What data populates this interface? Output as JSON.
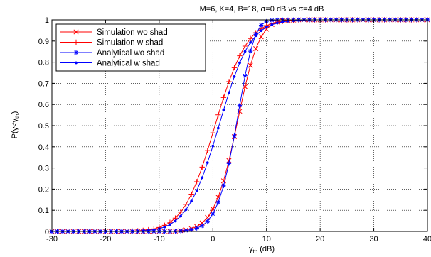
{
  "chart_data": {
    "type": "line",
    "title": "M=6, K=4, B=18, σ=0 dB vs σ=4 dB",
    "xlabel": {
      "base": "γ",
      "sub": "th",
      "suffix": " (dB)"
    },
    "ylabel": {
      "prefix": "P(γ<γ",
      "sub": "th",
      "suffix": ")"
    },
    "xlim": [
      -30,
      40
    ],
    "ylim": [
      0,
      1
    ],
    "xticks": [
      -30,
      -20,
      -10,
      0,
      10,
      20,
      30,
      40
    ],
    "yticks": [
      0,
      0.1,
      0.2,
      0.3,
      0.4,
      0.5,
      0.6,
      0.7,
      0.8,
      0.9,
      1
    ],
    "grid": true,
    "grid_style": "dotted",
    "legend_position": "top-left",
    "series": [
      {
        "name": "Simulation wo shad",
        "color": "#ff0000",
        "marker": "x",
        "x": [
          -30,
          -29,
          -28,
          -27,
          -26,
          -25,
          -24,
          -23,
          -22,
          -21,
          -20,
          -19,
          -18,
          -17,
          -16,
          -15,
          -14,
          -13,
          -12,
          -11,
          -10,
          -9,
          -8,
          -7,
          -6,
          -5,
          -4,
          -3,
          -2,
          -1,
          0,
          1,
          2,
          3,
          4,
          5,
          6,
          7,
          8,
          9,
          10,
          11,
          12,
          13,
          14,
          15,
          16,
          17,
          18,
          19,
          20,
          21,
          22,
          23,
          24,
          25,
          26,
          27,
          28,
          29,
          30,
          31,
          32,
          33,
          34,
          35,
          36,
          37,
          38,
          39,
          40
        ],
        "y": [
          0,
          0,
          0,
          0,
          0,
          0,
          0,
          0,
          0,
          0,
          0,
          0,
          0,
          0,
          0,
          0,
          0,
          0,
          0,
          0,
          0,
          0,
          0.001,
          0.002,
          0.004,
          0.007,
          0.013,
          0.023,
          0.04,
          0.066,
          0.106,
          0.162,
          0.239,
          0.335,
          0.448,
          0.568,
          0.684,
          0.785,
          0.864,
          0.92,
          0.956,
          0.978,
          0.99,
          0.996,
          0.998,
          0.999,
          1,
          1,
          1,
          1,
          1,
          1,
          1,
          1,
          1,
          1,
          1,
          1,
          1,
          1,
          1,
          1,
          1,
          1,
          1,
          1,
          1,
          1,
          1,
          1,
          1
        ]
      },
      {
        "name": "Simulation w shad",
        "color": "#ff0000",
        "marker": "+",
        "x": [
          -30,
          -29,
          -28,
          -27,
          -26,
          -25,
          -24,
          -23,
          -22,
          -21,
          -20,
          -19,
          -18,
          -17,
          -16,
          -15,
          -14,
          -13,
          -12,
          -11,
          -10,
          -9,
          -8,
          -7,
          -6,
          -5,
          -4,
          -3,
          -2,
          -1,
          0,
          1,
          2,
          3,
          4,
          5,
          6,
          7,
          8,
          9,
          10,
          11,
          12,
          13,
          14,
          15,
          16,
          17,
          18,
          19,
          20,
          21,
          22,
          23,
          24,
          25,
          26,
          27,
          28,
          29,
          30,
          31,
          32,
          33,
          34,
          35,
          36,
          37,
          38,
          39,
          40
        ],
        "y": [
          0,
          0,
          0,
          0,
          0,
          0,
          0,
          0,
          0,
          0,
          0,
          0,
          0,
          0.001,
          0.001,
          0.002,
          0.003,
          0.005,
          0.008,
          0.012,
          0.019,
          0.029,
          0.043,
          0.063,
          0.091,
          0.128,
          0.176,
          0.235,
          0.304,
          0.382,
          0.466,
          0.551,
          0.633,
          0.708,
          0.774,
          0.83,
          0.876,
          0.912,
          0.939,
          0.959,
          0.973,
          0.983,
          0.989,
          0.993,
          0.996,
          0.998,
          0.999,
          0.999,
          1,
          1,
          1,
          1,
          1,
          1,
          1,
          1,
          1,
          1,
          1,
          1,
          1,
          1,
          1,
          1,
          1,
          1,
          1,
          1,
          1,
          1,
          1
        ]
      },
      {
        "name": "Analytical wo shad",
        "color": "#0000ff",
        "marker": "*",
        "x": [
          -30,
          -29,
          -28,
          -27,
          -26,
          -25,
          -24,
          -23,
          -22,
          -21,
          -20,
          -19,
          -18,
          -17,
          -16,
          -15,
          -14,
          -13,
          -12,
          -11,
          -10,
          -9,
          -8,
          -7,
          -6,
          -5,
          -4,
          -3,
          -2,
          -1,
          0,
          1,
          2,
          3,
          4,
          5,
          6,
          7,
          8,
          9,
          10,
          11,
          12,
          13,
          14,
          15,
          16,
          17,
          18,
          19,
          20,
          21,
          22,
          23,
          24,
          25,
          26,
          27,
          28,
          29,
          30,
          31,
          32,
          33,
          34,
          35,
          36,
          37,
          38,
          39,
          40
        ],
        "y": [
          0,
          0,
          0,
          0,
          0,
          0,
          0,
          0,
          0,
          0,
          0,
          0,
          0,
          0,
          0,
          0,
          0,
          0,
          0,
          0,
          0,
          0,
          0,
          0.001,
          0.002,
          0.004,
          0.008,
          0.015,
          0.027,
          0.048,
          0.083,
          0.137,
          0.215,
          0.321,
          0.452,
          0.596,
          0.736,
          0.852,
          0.932,
          0.975,
          0.993,
          0.998,
          1,
          1,
          1,
          1,
          1,
          1,
          1,
          1,
          1,
          1,
          1,
          1,
          1,
          1,
          1,
          1,
          1,
          1,
          1,
          1,
          1,
          1,
          1,
          1,
          1,
          1,
          1,
          1,
          1
        ]
      },
      {
        "name": "Analytical w shad",
        "color": "#0000ff",
        "marker": ".",
        "x": [
          -30,
          -29,
          -28,
          -27,
          -26,
          -25,
          -24,
          -23,
          -22,
          -21,
          -20,
          -19,
          -18,
          -17,
          -16,
          -15,
          -14,
          -13,
          -12,
          -11,
          -10,
          -9,
          -8,
          -7,
          -6,
          -5,
          -4,
          -3,
          -2,
          -1,
          0,
          1,
          2,
          3,
          4,
          5,
          6,
          7,
          8,
          9,
          10,
          11,
          12,
          13,
          14,
          15,
          16,
          17,
          18,
          19,
          20,
          21,
          22,
          23,
          24,
          25,
          26,
          27,
          28,
          29,
          30,
          31,
          32,
          33,
          34,
          35,
          36,
          37,
          38,
          39,
          40
        ],
        "y": [
          0,
          0,
          0,
          0,
          0,
          0,
          0,
          0,
          0,
          0,
          0,
          0,
          0,
          0,
          0,
          0.001,
          0.002,
          0.003,
          0.005,
          0.008,
          0.013,
          0.021,
          0.033,
          0.049,
          0.072,
          0.103,
          0.143,
          0.193,
          0.254,
          0.325,
          0.404,
          0.488,
          0.574,
          0.656,
          0.732,
          0.797,
          0.851,
          0.893,
          0.925,
          0.949,
          0.965,
          0.977,
          0.985,
          0.99,
          0.994,
          0.996,
          0.998,
          0.999,
          0.999,
          1,
          1,
          1,
          1,
          1,
          1,
          1,
          1,
          1,
          1,
          1,
          1,
          1,
          1,
          1,
          1,
          1,
          1,
          1,
          1,
          1,
          1
        ]
      }
    ]
  }
}
